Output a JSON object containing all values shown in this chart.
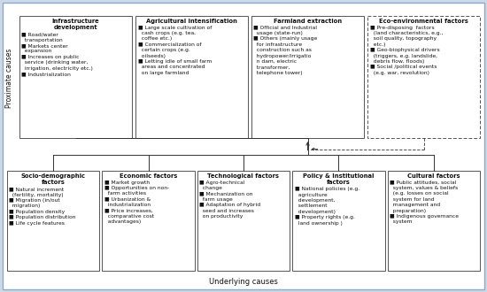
{
  "title_proximate": "Proximate causes",
  "title_underlying": "Underlying causes",
  "box_color": "#ffffff",
  "border_color": "#555555",
  "text_color": "#111111",
  "fig_bg": "#cdd8e8",
  "outer_bg": "#ffffff",
  "top_boxes": [
    {
      "title": "Infrastructure\ndevelopment",
      "content": "■ Road/water\n  transportation\n■ Markets center\n  expansion\n■ Increases on public\n  service (drinking water,\n  irrigation, electricity etc.)\n■ Industrialization"
    },
    {
      "title": "Agricultural intensification",
      "content": "■ Large scale cultivation of\n  cash crops (e.g. tea,\n  coffee etc.)\n■ Commercialization of\n  certain crops (e.g.\n  oilseeds)\n■ Letting idle of small farm\n  areas and concentrated\n  on large farmland"
    },
    {
      "title": "Farmland extraction",
      "content": "■ Official and Industrial\n  usage (state-run)\n■ Others (mainly usage\n  for infrastructure\n  construction such as\n  hydropower/irrigatio\n  n dam, electric\n  transformer,\n  telephone tower)"
    },
    {
      "title": "Eco-environmental factors",
      "content": "■ Pre-disposing  factors\n  (land characteristics, e.g.,\n  soil quality, topography\n  etc.)\n■ Geo-biophysical drivers\n  (triggers, e.g. landslide,\n  debris flow, floods)\n■ Social /political events\n  (e.g. war, revolution)"
    }
  ],
  "bottom_boxes": [
    {
      "title": "Socio-demographic\nfactors",
      "content": "■ Natural increment\n  (fertility, mortality)\n■ Migration (in/out\n  migration)\n■ Population density\n■ Population distribution\n■ Life cycle features"
    },
    {
      "title": "Economic factors",
      "content": "■ Market growth\n■ Opportunities on non-\n  farm activities\n■ Urbanization &\n  industrialization\n■ Price increases,\n  comparative cost\n  advantages)"
    },
    {
      "title": "Technological factors",
      "content": "■ Agro-technical\n  change\n■ Mechanization on\n  farm usage\n■ Adaptation of hybrid\n  seed and increases\n  on productivity"
    },
    {
      "title": "Policy & Institutional\nfactors",
      "content": "■ National policies (e.g.\n  agriculture\n  development,\n  settlement\n  development)\n■ Property rights (e.g.\n  land ownership )"
    },
    {
      "title": "Cultural factors",
      "content": "■ Public attitudes, social\n  system, values & beliefs\n  (e.g. losses on social\n  system for land\n  management and\n  preparation)\n■ Indigenous governance\n  system"
    }
  ]
}
